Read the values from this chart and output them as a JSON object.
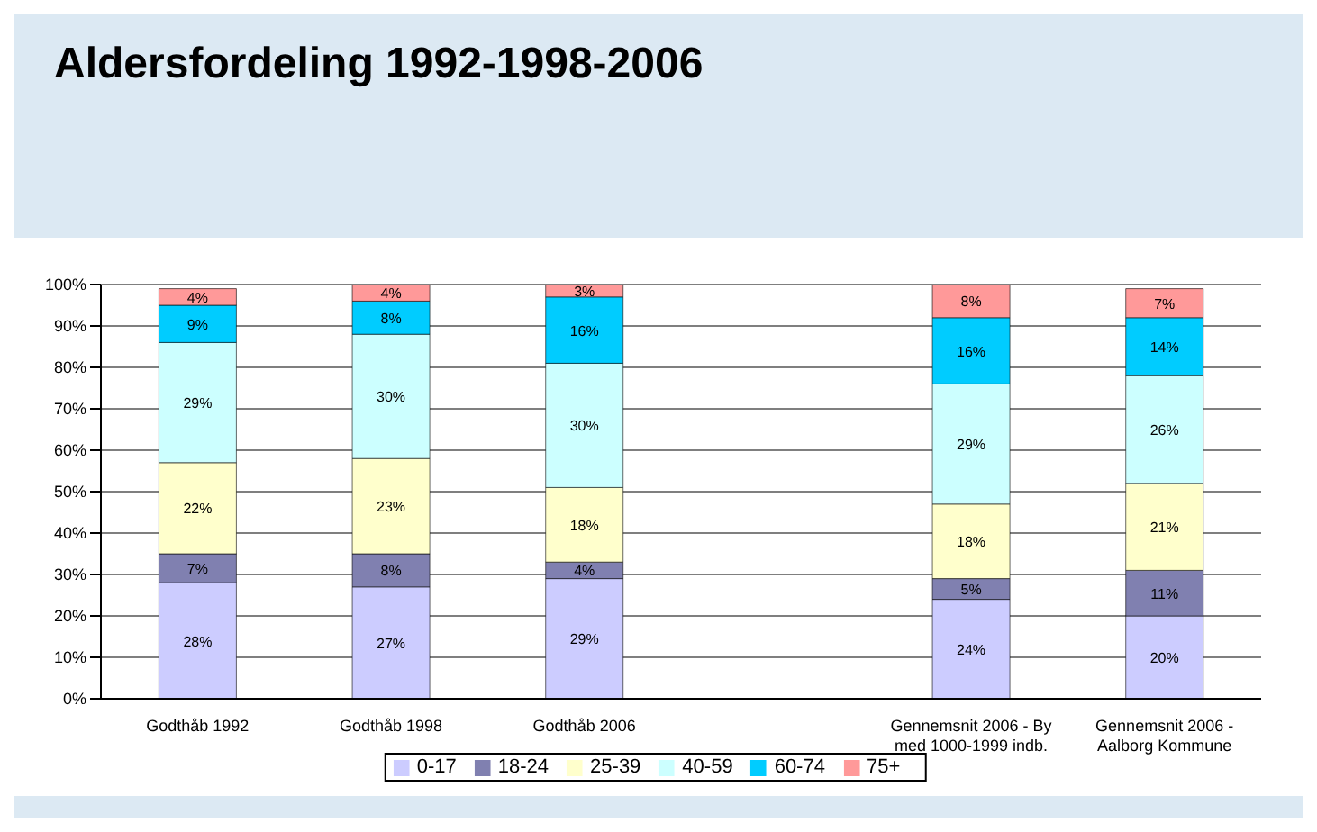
{
  "chart_data": {
    "type": "bar",
    "title": "Aldersfordeling 1992-1998-2006",
    "stacked": true,
    "categories": [
      "Godthåb 1992",
      "Godthåb 1998",
      "Godthåb 2006",
      null,
      "Gennemsnit 2006 - By med 1000-1999 indb.",
      "Gennemsnit 2006 - Aalborg Kommune"
    ],
    "series": [
      {
        "name": "0-17",
        "color": "#ccccff",
        "values": [
          28,
          27,
          29,
          null,
          24,
          20
        ],
        "value_labels": [
          "28%",
          "27%",
          "29%",
          null,
          "24%",
          "20%"
        ]
      },
      {
        "name": "18-24",
        "color": "#8080b0",
        "values": [
          7,
          8,
          4,
          null,
          5,
          11
        ],
        "value_labels": [
          "7%",
          "8%",
          "4%",
          null,
          "5%",
          "11%"
        ]
      },
      {
        "name": "25-39",
        "color": "#ffffcc",
        "values": [
          22,
          23,
          18,
          null,
          18,
          21
        ],
        "value_labels": [
          "22%",
          "23%",
          "18%",
          null,
          "18%",
          "21%"
        ]
      },
      {
        "name": "40-59",
        "color": "#ccffff",
        "values": [
          29,
          30,
          30,
          null,
          29,
          26
        ],
        "value_labels": [
          "29%",
          "30%",
          "30%",
          null,
          "29%",
          "26%"
        ]
      },
      {
        "name": "60-74",
        "color": "#00ccff",
        "values": [
          9,
          8,
          16,
          null,
          16,
          14
        ],
        "value_labels": [
          "9%",
          "8%",
          "16%",
          null,
          "16%",
          "14%"
        ]
      },
      {
        "name": "75+",
        "color": "#ff9999",
        "values": [
          4,
          4,
          3,
          null,
          8,
          7
        ],
        "value_labels": [
          "4%",
          "4%",
          "3%",
          null,
          "8%",
          "7%"
        ]
      }
    ],
    "ylim": [
      0,
      100
    ],
    "yticks": [
      {
        "value": 0,
        "label": "0%"
      },
      {
        "value": 10,
        "label": "10%"
      },
      {
        "value": 20,
        "label": "20%"
      },
      {
        "value": 30,
        "label": "30%"
      },
      {
        "value": 40,
        "label": "40%"
      },
      {
        "value": 50,
        "label": "50%"
      },
      {
        "value": 60,
        "label": "60%"
      },
      {
        "value": 70,
        "label": "70%"
      },
      {
        "value": 80,
        "label": "80%"
      },
      {
        "value": 90,
        "label": "90%"
      },
      {
        "value": 100,
        "label": "100%"
      }
    ],
    "grid": "y",
    "legend": "bottom"
  }
}
